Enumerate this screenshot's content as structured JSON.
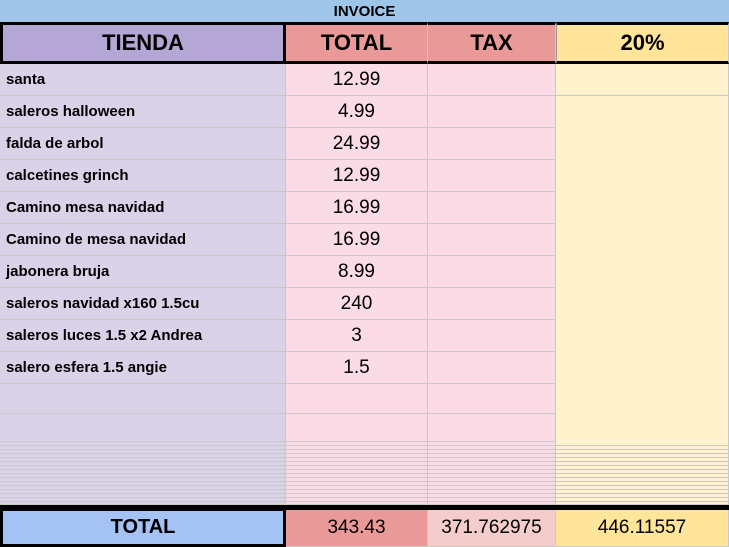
{
  "title": "INVOICE",
  "header": [
    "TIENDA",
    "TOTAL",
    "TAX",
    "20%"
  ],
  "rows": [
    {
      "item": "santa",
      "total": 12.99
    },
    {
      "item": "saleros halloween",
      "total": 4.99
    },
    {
      "item": "falda de arbol",
      "total": 24.99
    },
    {
      "item": "calcetines grinch",
      "total": 12.99
    },
    {
      "item": "Camino mesa navidad",
      "total": 16.99
    },
    {
      "item": "Camino de mesa navidad",
      "total": 16.99
    },
    {
      "item": "jabonera bruja",
      "total": 8.99
    },
    {
      "item": "saleros navidad x160 1.5cu",
      "total": 240
    },
    {
      "item": "saleros luces 1.5 x2 Andrea",
      "total": 3
    },
    {
      "item": "salero esfera 1.5 angie",
      "total": 1.5
    }
  ],
  "totals": {
    "label": "TOTAL",
    "total": 343.43,
    "tax": 371.762975,
    "pct": 446.11557
  }
}
